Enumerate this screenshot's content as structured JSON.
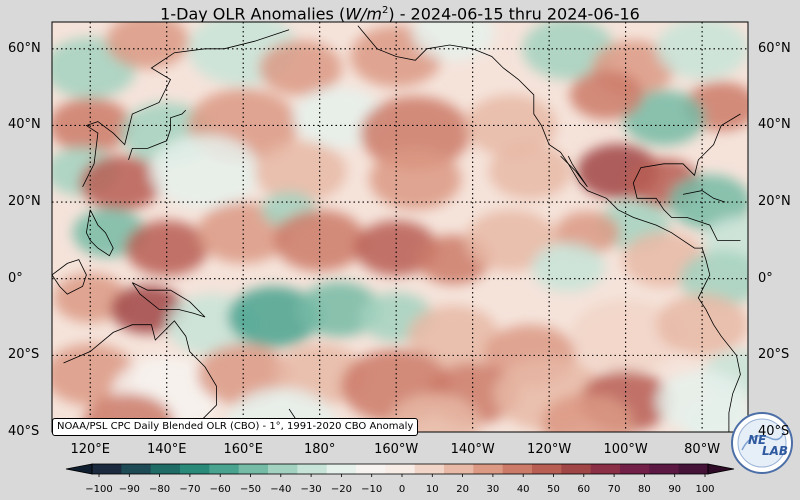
{
  "title": {
    "prefix": "1-Day OLR Anomalies (",
    "unit_base": "W/m",
    "unit_exp": "2",
    "suffix": ") - 2024-06-15 thru 2024-06-16"
  },
  "map": {
    "lat_labels": [
      {
        "lat": 60,
        "text": "60°N"
      },
      {
        "lat": 40,
        "text": "40°N"
      },
      {
        "lat": 20,
        "text": "20°N"
      },
      {
        "lat": 0,
        "text": "0°"
      },
      {
        "lat": -20,
        "text": "20°S"
      },
      {
        "lat": -40,
        "text": "40°S"
      }
    ],
    "lon_labels": [
      {
        "lon": 120,
        "text": "120°E"
      },
      {
        "lon": 140,
        "text": "140°E"
      },
      {
        "lon": 160,
        "text": "160°E"
      },
      {
        "lon": 180,
        "text": "180°"
      },
      {
        "lon": 200,
        "text": "160°W"
      },
      {
        "lon": 220,
        "text": "140°W"
      },
      {
        "lon": 240,
        "text": "120°W"
      },
      {
        "lon": 260,
        "text": "100°W"
      },
      {
        "lon": 280,
        "text": "80°W"
      }
    ],
    "lat_range": [
      -40,
      67
    ],
    "lon_range": [
      110,
      292
    ],
    "grid": "dotted"
  },
  "credit": "NOAA/PSL CPC Daily Blended OLR (CBO) - 1°, 1991-2020 CBO Anomaly",
  "colorbar": {
    "ticks": [
      "−100",
      "−90",
      "−80",
      "−70",
      "−60",
      "−50",
      "−40",
      "−30",
      "−20",
      "−10",
      "0",
      "10",
      "20",
      "30",
      "40",
      "50",
      "60",
      "70",
      "80",
      "90",
      "100"
    ],
    "range": [
      -100,
      100
    ],
    "colors": [
      "#1b2a3f",
      "#1d4a55",
      "#1f6b66",
      "#2a8a7a",
      "#4aa38f",
      "#76bba6",
      "#a3d2c0",
      "#c8e4d8",
      "#e6f1ec",
      "#f7f3f0",
      "#f7ece6",
      "#f1d5c8",
      "#e8b9a6",
      "#dc9a85",
      "#cc7b68",
      "#b85e53",
      "#a14646",
      "#8a2f45",
      "#722047",
      "#5a1842",
      "#451238"
    ]
  },
  "logo": {
    "line1": "NE",
    "line2": "LAB"
  }
}
